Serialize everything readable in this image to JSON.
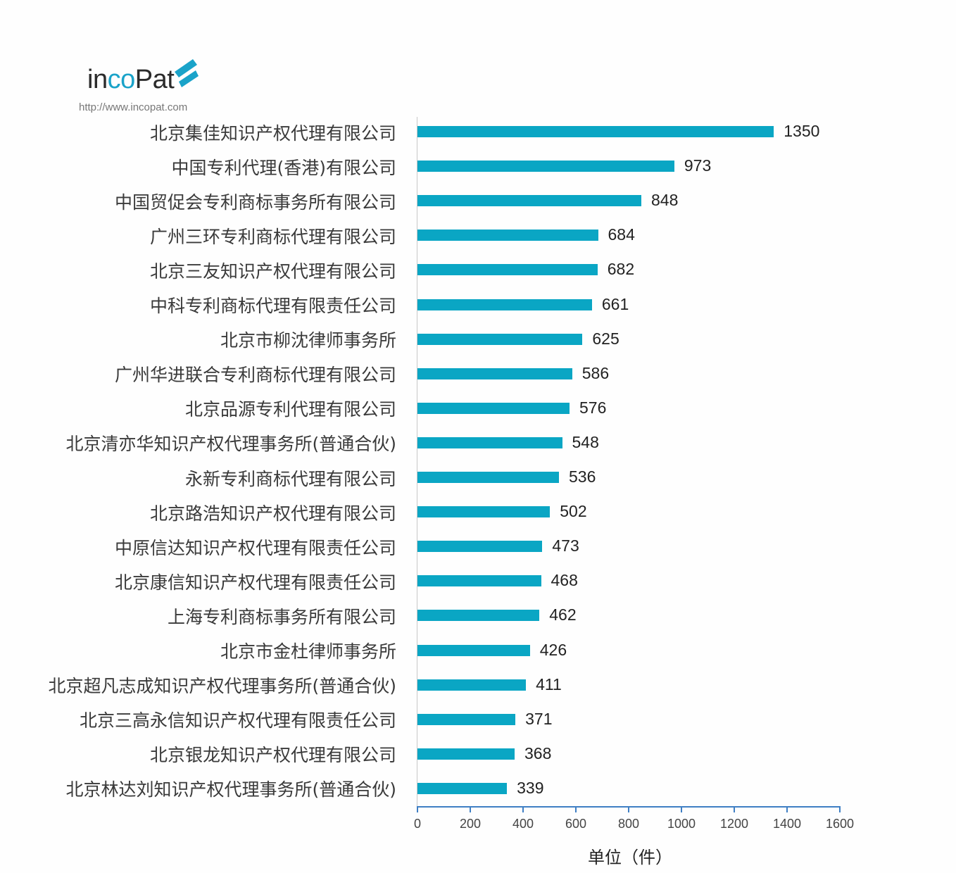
{
  "logo": {
    "brand_prefix": "in",
    "brand_co": "co",
    "brand_suffix": "Pat",
    "url": "http://www.incopat.com",
    "accent": "#1aa3c9"
  },
  "chart_data": {
    "type": "bar",
    "orientation": "horizontal",
    "title": "",
    "xlabel": "单位（件）",
    "ylabel": "",
    "xlim": [
      0,
      1600
    ],
    "xticks": [
      0,
      200,
      400,
      600,
      800,
      1000,
      1200,
      1400,
      1600
    ],
    "bar_color": "#0aa6c4",
    "categories": [
      "北京集佳知识产权代理有限公司",
      "中国专利代理(香港)有限公司",
      "中国贸促会专利商标事务所有限公司",
      "广州三环专利商标代理有限公司",
      "北京三友知识产权代理有限公司",
      "中科专利商标代理有限责任公司",
      "北京市柳沈律师事务所",
      "广州华进联合专利商标代理有限公司",
      "北京品源专利代理有限公司",
      "北京清亦华知识产权代理事务所(普通合伙)",
      "永新专利商标代理有限公司",
      "北京路浩知识产权代理有限公司",
      "中原信达知识产权代理有限责任公司",
      "北京康信知识产权代理有限责任公司",
      "上海专利商标事务所有限公司",
      "北京市金杜律师事务所",
      "北京超凡志成知识产权代理事务所(普通合伙)",
      "北京三高永信知识产权代理有限责任公司",
      "北京银龙知识产权代理有限公司",
      "北京林达刘知识产权代理事务所(普通合伙)"
    ],
    "values": [
      1350,
      973,
      848,
      684,
      682,
      661,
      625,
      586,
      576,
      548,
      536,
      502,
      473,
      468,
      462,
      426,
      411,
      371,
      368,
      339
    ]
  }
}
